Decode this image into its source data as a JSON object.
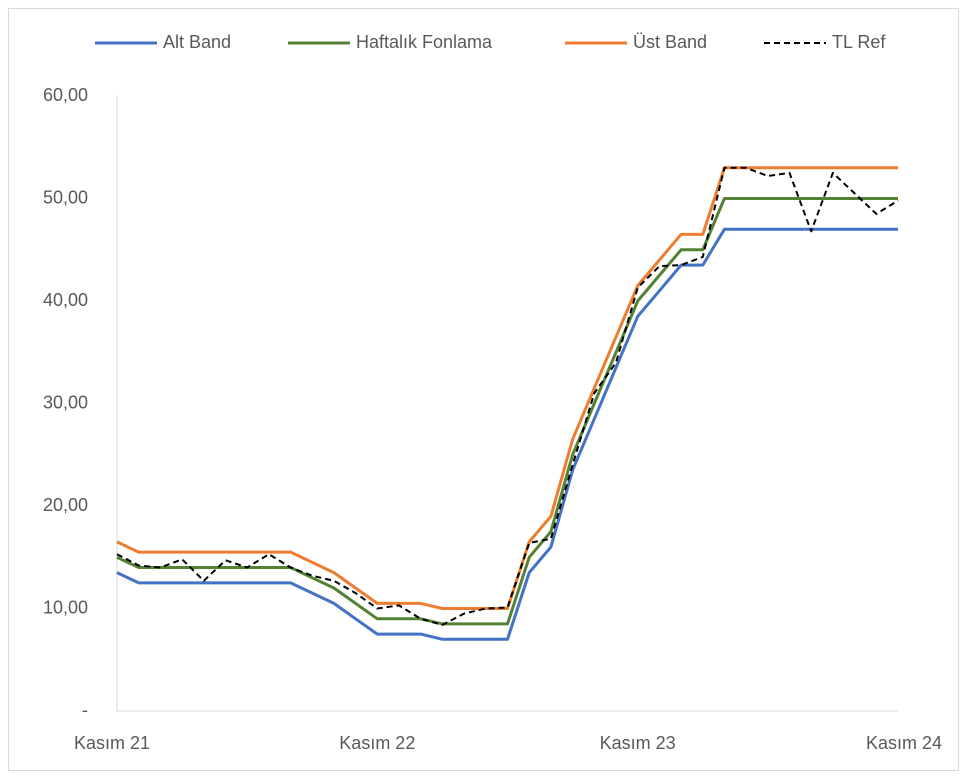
{
  "chart_data": {
    "type": "line",
    "categories": [
      "Kasım 21",
      null,
      null,
      null,
      null,
      null,
      null,
      null,
      null,
      null,
      null,
      null,
      "Kasım 22",
      null,
      null,
      null,
      null,
      null,
      null,
      null,
      null,
      null,
      null,
      null,
      "Kasım 23",
      null,
      null,
      null,
      null,
      null,
      null,
      null,
      null,
      null,
      null,
      null,
      "Kasım 24"
    ],
    "series": [
      {
        "name": "Alt Band",
        "color": "#4472c4",
        "dash": false,
        "values": [
          13.5,
          12.5,
          12.5,
          12.5,
          12.5,
          12.5,
          12.5,
          12.5,
          12.5,
          11.5,
          10.5,
          9,
          7.5,
          7.5,
          7.5,
          7,
          7,
          7,
          7,
          13.5,
          16,
          23.5,
          28.5,
          33.5,
          38.5,
          41,
          43.5,
          43.5,
          47,
          47,
          47,
          47,
          47,
          47,
          47,
          47,
          47
        ]
      },
      {
        "name": "Haftalık Fonlama",
        "color": "#548235",
        "dash": false,
        "values": [
          15,
          14,
          14,
          14,
          14,
          14,
          14,
          14,
          14,
          13,
          12,
          10.5,
          9,
          9,
          9,
          8.5,
          8.5,
          8.5,
          8.5,
          15,
          17.5,
          25,
          30,
          35,
          40,
          42.5,
          45,
          45,
          50,
          50,
          50,
          50,
          50,
          50,
          50,
          50,
          50
        ]
      },
      {
        "name": "Üst Band",
        "color": "#ed7d31",
        "dash": false,
        "values": [
          16.5,
          15.5,
          15.5,
          15.5,
          15.5,
          15.5,
          15.5,
          15.5,
          15.5,
          14.5,
          13.5,
          12,
          10.5,
          10.5,
          10.5,
          10,
          10,
          10,
          10,
          16.5,
          19,
          26.5,
          31.5,
          36.5,
          41.5,
          44,
          46.5,
          46.5,
          53,
          53,
          53,
          53,
          53,
          53,
          53,
          53,
          53
        ]
      },
      {
        "name": "TL Ref",
        "color": "#000000",
        "dash": true,
        "values": [
          15.3,
          14.2,
          14,
          14.8,
          12.7,
          14.7,
          14,
          15.3,
          14,
          13.2,
          12.7,
          11.5,
          10,
          10.3,
          9,
          8.4,
          9.5,
          10,
          10.1,
          16.4,
          16.8,
          24,
          31,
          34,
          41.3,
          43.4,
          43.5,
          44.3,
          53,
          53,
          52.2,
          52.5,
          46.8,
          52.5,
          50.5,
          48.5,
          49.8
        ]
      }
    ],
    "ylim": [
      0,
      60
    ],
    "yticks": [
      {
        "value": 0,
        "label": "-"
      },
      {
        "value": 10,
        "label": "10,00"
      },
      {
        "value": 20,
        "label": "20,00"
      },
      {
        "value": 30,
        "label": "30,00"
      },
      {
        "value": 40,
        "label": "40,00"
      },
      {
        "value": 50,
        "label": "50,00"
      },
      {
        "value": 60,
        "label": "60,00"
      }
    ],
    "grid": false,
    "legend": "top"
  }
}
